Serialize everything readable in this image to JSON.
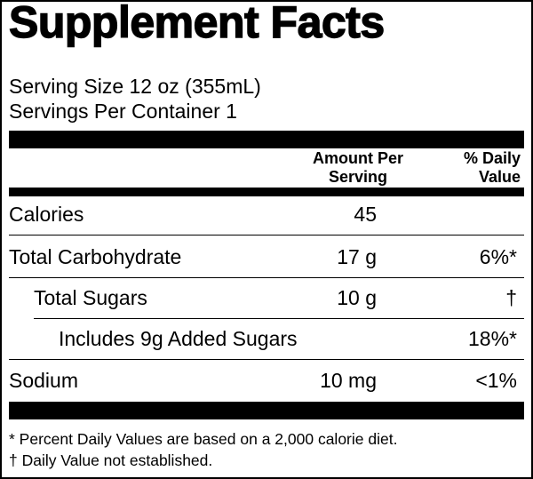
{
  "title": "Supplement Facts",
  "serving_size": "Serving Size 12 oz (355mL)",
  "servings_per_container": "Servings Per Container 1",
  "columns": {
    "amount_line1": "Amount Per",
    "amount_line2": "Serving",
    "dv_line1": "% Daily",
    "dv_line2": "Value"
  },
  "rows": [
    {
      "label": "Calories",
      "amount": "45",
      "dv": ""
    },
    {
      "label": "Total Carbohydrate",
      "amount": "17 g",
      "dv": "6%*"
    },
    {
      "label": "Total Sugars",
      "amount": "10 g",
      "dv": "†"
    },
    {
      "label": "Includes 9g Added Sugars",
      "amount": "",
      "dv": "18%*"
    },
    {
      "label": "Sodium",
      "amount": "10 mg",
      "dv": "<1%"
    }
  ],
  "footnotes": [
    "* Percent Daily Values are based on a 2,000 calorie diet.",
    "† Daily Value not established."
  ]
}
